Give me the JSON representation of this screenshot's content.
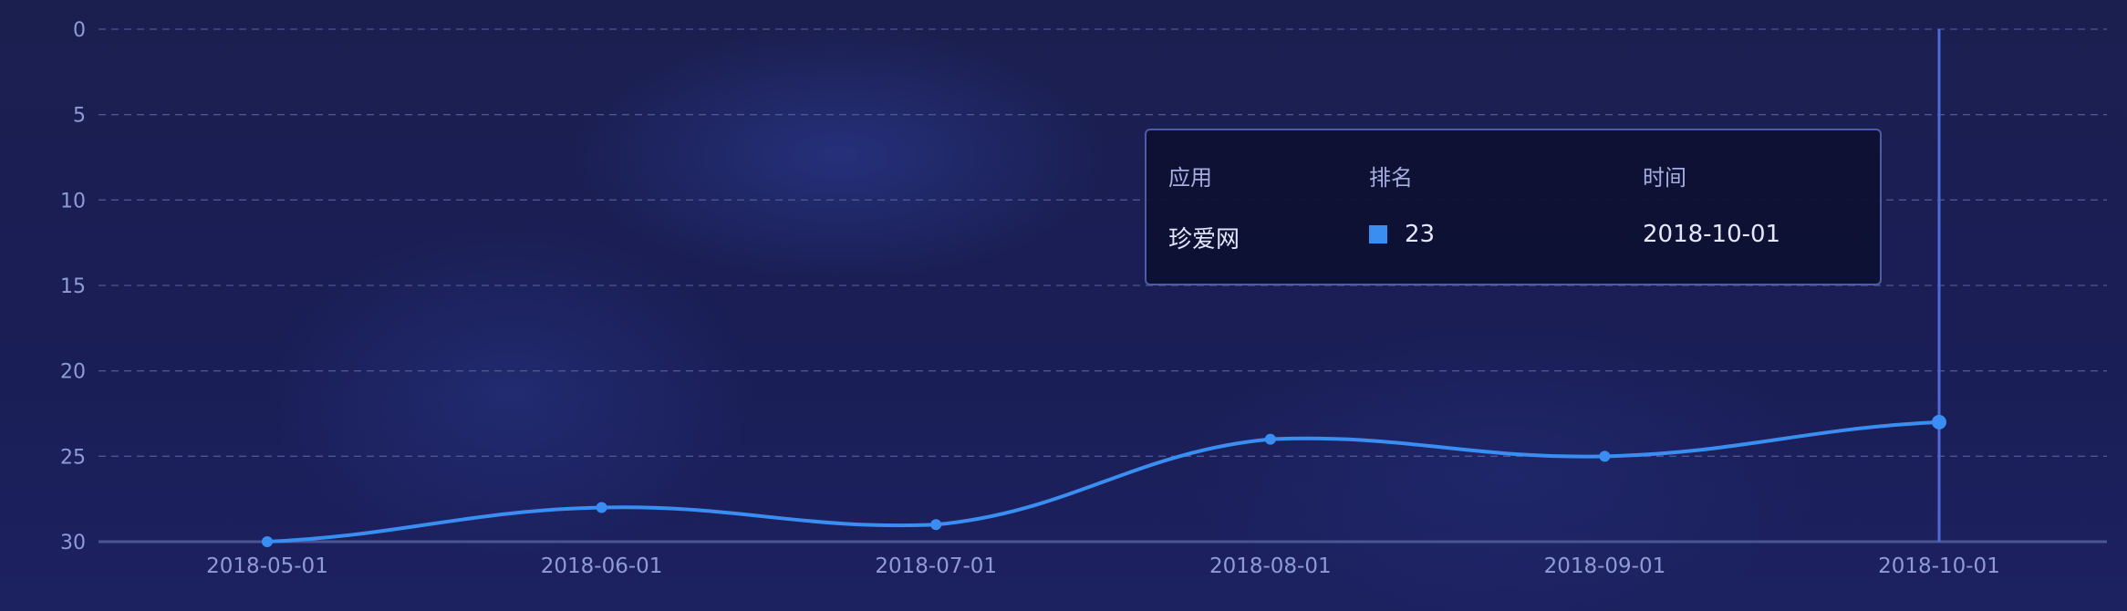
{
  "chart_data": {
    "type": "line",
    "smooth": true,
    "x": [
      "2018-05-01",
      "2018-06-01",
      "2018-07-01",
      "2018-08-01",
      "2018-09-01",
      "2018-10-01"
    ],
    "series": [
      {
        "values": [
          30,
          28,
          29,
          24,
          25,
          23
        ]
      }
    ],
    "ylim": [
      0,
      30
    ],
    "y_inverted": true,
    "yticks": [
      0,
      5,
      10,
      15,
      20,
      25,
      30
    ],
    "grid": true,
    "line_color": "#3a8ef2",
    "highlight_index": 5
  },
  "tooltip": {
    "headers": {
      "app": "应用",
      "rank": "排名",
      "time": "时间"
    },
    "app": "珍爱网",
    "rank": "23",
    "time": "2018-10-01",
    "swatch_color": "#3a8ef2"
  }
}
